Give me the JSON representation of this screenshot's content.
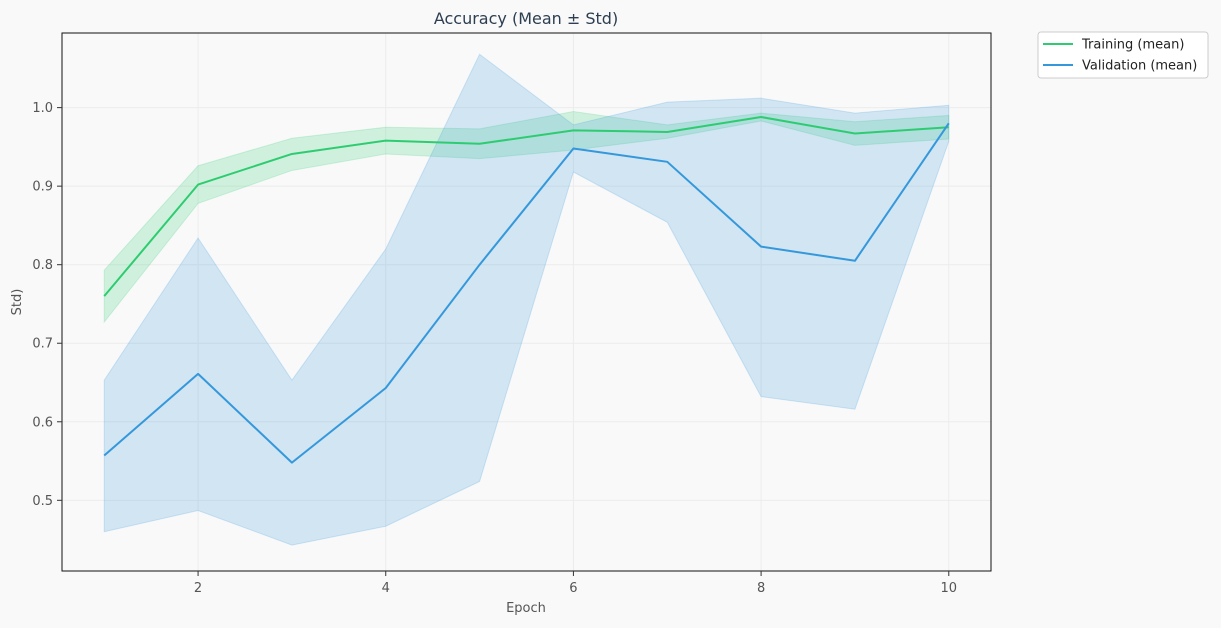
{
  "chart_data": {
    "type": "line",
    "title": "Accuracy (Mean ± Std)",
    "xlabel": "Epoch",
    "ylabel": "Std)",
    "xlim": [
      0.55,
      10.45
    ],
    "ylim": [
      0.41,
      1.095
    ],
    "xticks": [
      2,
      4,
      6,
      8,
      10
    ],
    "yticks": [
      0.5,
      0.6,
      0.7,
      0.8,
      0.9,
      1.0
    ],
    "grid": true,
    "legend_position": "outside top-right",
    "x": [
      1,
      2,
      3,
      4,
      5,
      6,
      7,
      8,
      9,
      10
    ],
    "series": [
      {
        "name": "Training (mean)",
        "color": "#2ecc71",
        "mean": [
          0.76,
          0.902,
          0.941,
          0.958,
          0.954,
          0.971,
          0.969,
          0.988,
          0.967,
          0.975
        ],
        "lower": [
          0.727,
          0.878,
          0.92,
          0.941,
          0.935,
          0.946,
          0.961,
          0.983,
          0.952,
          0.96
        ],
        "upper": [
          0.793,
          0.926,
          0.961,
          0.975,
          0.973,
          0.995,
          0.978,
          0.993,
          0.982,
          0.99
        ]
      },
      {
        "name": "Validation (mean)",
        "color": "#3498db",
        "mean": [
          0.557,
          0.661,
          0.548,
          0.643,
          0.8,
          0.948,
          0.931,
          0.823,
          0.805,
          0.98
        ],
        "lower": [
          0.46,
          0.487,
          0.443,
          0.467,
          0.524,
          0.918,
          0.854,
          0.632,
          0.616,
          0.957
        ],
        "upper": [
          0.653,
          0.834,
          0.653,
          0.82,
          1.068,
          0.978,
          1.007,
          1.012,
          0.993,
          1.003
        ]
      }
    ]
  }
}
